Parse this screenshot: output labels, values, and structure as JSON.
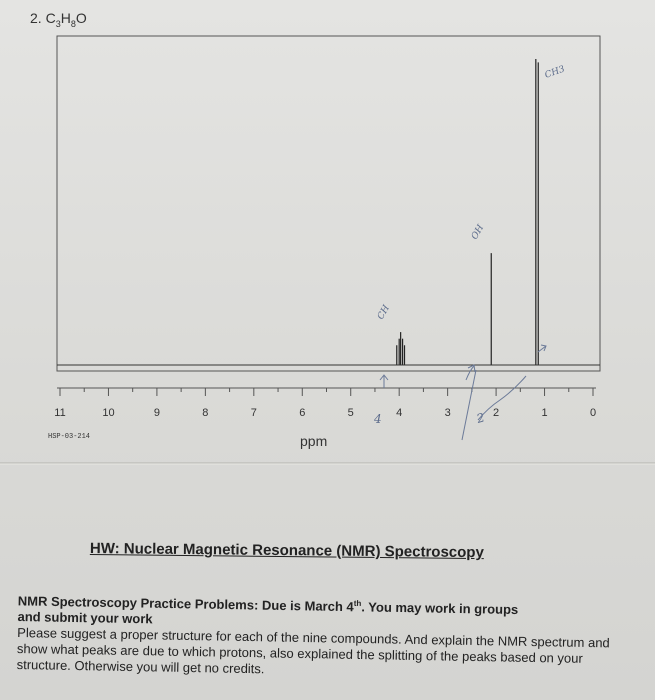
{
  "problem": {
    "number": "2.",
    "formula_main": "C",
    "formula_sub1": "3",
    "formula_h": "H",
    "formula_sub2": "8",
    "formula_o": "O"
  },
  "chart_data": {
    "type": "line",
    "title": "",
    "xlabel": "ppm",
    "ylabel": "",
    "xlim": [
      11,
      0
    ],
    "ticks": [
      "11",
      "10",
      "9",
      "8",
      "7",
      "6",
      "5",
      "4",
      "3",
      "2",
      "1",
      "0"
    ],
    "spectrum_code": "HSP-03-214",
    "peaks": [
      {
        "ppm": 4.05,
        "height": 0.06
      },
      {
        "ppm": 4.0,
        "height": 0.08
      },
      {
        "ppm": 3.97,
        "height": 0.1
      },
      {
        "ppm": 3.93,
        "height": 0.08
      },
      {
        "ppm": 3.89,
        "height": 0.06
      },
      {
        "ppm": 2.1,
        "height": 0.34
      },
      {
        "ppm": 1.18,
        "height": 0.93
      },
      {
        "ppm": 1.13,
        "height": 0.92
      }
    ],
    "annotations": {
      "ch": "CH",
      "oh": "OH",
      "ch3": "CH3",
      "hand_2": "2",
      "hand_4": "4"
    }
  },
  "homework": {
    "title": "HW: Nuclear Magnetic Resonance (NMR) Spectroscopy",
    "line1_bold": "NMR Spectroscopy Practice Problems: Due is March 4",
    "line1_sup": "th",
    "line1_rest": ". You may work in groups",
    "line2_bold": "and submit your work",
    "paragraph": "Please suggest a proper structure for each of the nine compounds. And explain the NMR spectrum and show what peaks are due to which protons, also explained the splitting of the peaks based on your structure. Otherwise you will get no credits."
  }
}
